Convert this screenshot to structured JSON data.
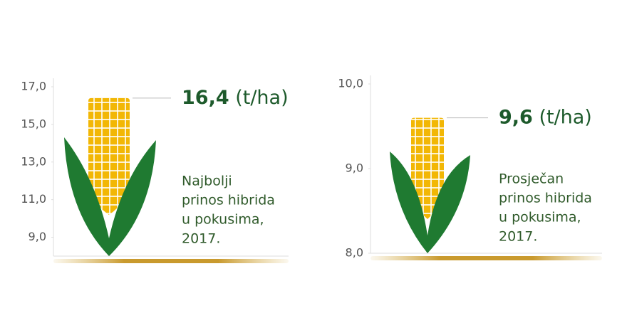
{
  "chart_data": [
    {
      "type": "pictograph",
      "values": [
        16.4
      ],
      "value_labels": [
        "16,4"
      ],
      "unit": "(t/ha)",
      "annotation": [
        "Najbolji",
        "prinos hibrida",
        "u pokusima,",
        "2017."
      ],
      "ylim": [
        8,
        17
      ],
      "yticks": [
        {
          "value": 9,
          "label": "9,0"
        },
        {
          "value": 11,
          "label": "11,0"
        },
        {
          "value": 13,
          "label": "13,0"
        },
        {
          "value": 15,
          "label": "15,0"
        },
        {
          "value": 17,
          "label": "17,0"
        }
      ],
      "color": "#f2b705",
      "leaf_color": "#1f7a31"
    },
    {
      "type": "pictograph",
      "values": [
        9.6
      ],
      "value_labels": [
        "9,6"
      ],
      "unit": "(t/ha)",
      "annotation": [
        "Prosječan",
        "prinos hibrida",
        "u pokusima,",
        "2017."
      ],
      "ylim": [
        8,
        10
      ],
      "yticks": [
        {
          "value": 8,
          "label": "8,0"
        },
        {
          "value": 9,
          "label": "9,0"
        },
        {
          "value": 10,
          "label": "10,0"
        }
      ],
      "color": "#f2b705",
      "leaf_color": "#1f7a31"
    }
  ]
}
